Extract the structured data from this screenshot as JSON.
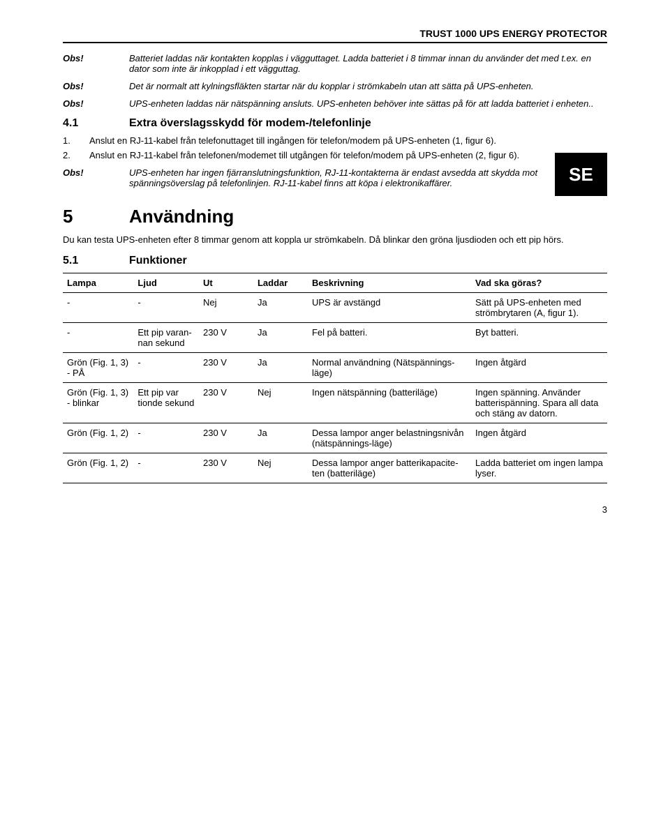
{
  "header": {
    "title": "TRUST 1000 UPS ENERGY PROTECTOR"
  },
  "obs_label": "Obs!",
  "obs": {
    "o1": "Batteriet laddas när kontakten kopplas i vägguttaget. Ladda batteriet i 8 timmar innan du använder det med t.ex. en dator som inte är inkopplad i ett vägguttag.",
    "o2": "Det är normalt att kylningsfläkten startar när du kopplar i strömkabeln utan att sätta på UPS-enheten.",
    "o3": "UPS-enheten laddas när nätspänning ansluts. UPS-enheten behöver inte sättas på för att ladda batteriet i enheten.."
  },
  "sec41": {
    "num": "4.1",
    "title": "Extra överslagsskydd för modem-/telefonlinje"
  },
  "steps": {
    "s1n": "1.",
    "s1t": "Anslut en RJ-11-kabel från telefonuttaget till ingången för telefon/modem på UPS-enheten (1, figur 6).",
    "s2n": "2.",
    "s2t": "Anslut en RJ-11-kabel från telefonen/modemet till utgången för telefon/modem på UPS-enheten (2, figur 6)."
  },
  "obs4": "UPS-enheten har ingen fjärranslutningsfunktion, RJ-11-kontakterna är endast avsedda att skydda mot spänningsöverslag på telefonlinjen. RJ-11-kabel finns att köpa i elektronikaffärer.",
  "se_badge": "SE",
  "sec5": {
    "num": "5",
    "title": "Användning"
  },
  "para5": "Du kan testa UPS-enheten efter 8 timmar genom att koppla ur strömkabeln. Då blinkar den gröna ljusdioden och ett pip hörs.",
  "sec51": {
    "num": "5.1",
    "title": "Funktioner"
  },
  "table": {
    "headers": {
      "lampa": "Lampa",
      "ljud": "Ljud",
      "ut": "Ut",
      "laddar": "Laddar",
      "besk": "Beskrivning",
      "vad": "Vad ska göras?"
    },
    "rows": [
      {
        "lampa": "-",
        "ljud": "-",
        "ut": "Nej",
        "laddar": "Ja",
        "besk": "UPS är avstängd",
        "vad": "Sätt på UPS-enheten med strömbrytaren (A, figur 1)."
      },
      {
        "lampa": "-",
        "ljud": "Ett pip varan-nan sekund",
        "ut": "230 V",
        "laddar": "Ja",
        "besk": "Fel på batteri.",
        "vad": "Byt batteri."
      },
      {
        "lampa": "Grön (Fig. 1, 3) - PÅ",
        "ljud": "-",
        "ut": "230 V",
        "laddar": "Ja",
        "besk": "Normal användning (Nätspännings-läge)",
        "vad": "Ingen åtgärd"
      },
      {
        "lampa": "Grön (Fig. 1, 3) - blinkar",
        "ljud": "Ett pip var tionde sekund",
        "ut": "230 V",
        "laddar": "Nej",
        "besk": "Ingen nätspänning (batteriläge)",
        "vad": "Ingen spänning. Använder batterispänning. Spara all data och stäng av datorn."
      },
      {
        "lampa": "Grön (Fig. 1, 2)",
        "ljud": "-",
        "ut": "230 V",
        "laddar": "Ja",
        "besk": "Dessa lampor anger belastningsnivån (nätspännings-läge)",
        "vad": "Ingen åtgärd"
      },
      {
        "lampa": "Grön (Fig. 1, 2)",
        "ljud": "-",
        "ut": "230 V",
        "laddar": "Nej",
        "besk": "Dessa lampor anger batterikapacite-ten (batteriläge)",
        "vad": "Ladda batteriet om ingen lampa lyser."
      }
    ]
  },
  "page_number": "3"
}
